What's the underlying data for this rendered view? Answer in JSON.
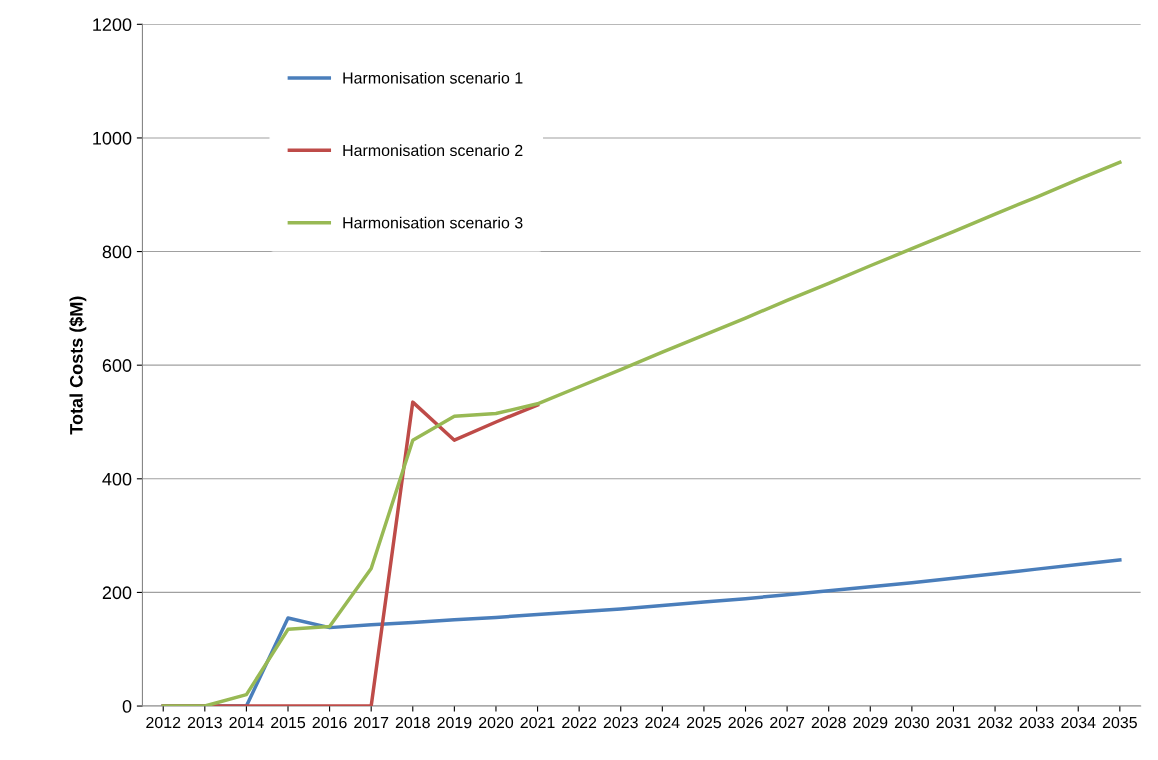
{
  "chart_data": {
    "type": "line",
    "ylabel": "Total Costs ($M)",
    "categories": [
      "2012",
      "2013",
      "2014",
      "2015",
      "2016",
      "2017",
      "2018",
      "2019",
      "2020",
      "2021",
      "2022",
      "2023",
      "2024",
      "2025",
      "2026",
      "2027",
      "2028",
      "2029",
      "2030",
      "2031",
      "2032",
      "2033",
      "2034",
      "2035"
    ],
    "series": [
      {
        "name": "Harmonisation scenario 1",
        "color": "#4a7ebb",
        "values": [
          0,
          0,
          0,
          155,
          138,
          143,
          147,
          152,
          156,
          161,
          166,
          171,
          177,
          183,
          189,
          196,
          203,
          210,
          217,
          225,
          233,
          241,
          249,
          257
        ]
      },
      {
        "name": "Harmonisation scenario 2",
        "color": "#be4b48",
        "values": [
          0,
          0,
          0,
          0,
          0,
          0,
          535,
          468,
          500,
          530,
          null,
          null,
          null,
          null,
          null,
          null,
          null,
          null,
          null,
          null,
          null,
          null,
          null,
          null
        ]
      },
      {
        "name": "Harmonisation scenario 3",
        "color": "#98b954",
        "values": [
          0,
          0,
          20,
          135,
          140,
          242,
          468,
          510,
          515,
          532,
          562,
          592,
          623,
          653,
          683,
          714,
          744,
          775,
          805,
          835,
          866,
          896,
          927,
          957
        ]
      }
    ],
    "ylim": [
      0,
      1200
    ],
    "yticks": [
      0,
      200,
      400,
      600,
      800,
      1000,
      1200
    ],
    "grid": "y",
    "legend": "top left",
    "marker": "none",
    "line_style": "solid"
  }
}
